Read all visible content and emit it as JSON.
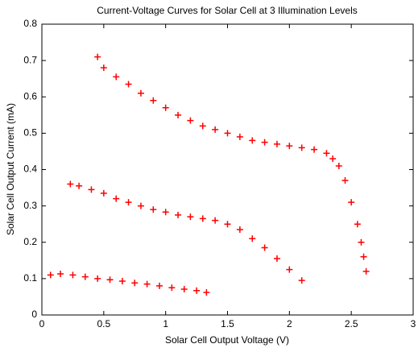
{
  "chart_data": {
    "type": "scatter",
    "title": "Current-Voltage Curves for Solar Cell at 3 Illumination Levels",
    "x_label": "Solar Cell Output Voltage (V)",
    "y_label": "Solar Cell Output Current (mA)",
    "xlim": [
      0,
      3
    ],
    "ylim": [
      0,
      0.8
    ],
    "xticks": [
      0,
      0.5,
      1,
      1.5,
      2,
      2.5,
      3
    ],
    "yticks": [
      0,
      0.1,
      0.2,
      0.3,
      0.4,
      0.5,
      0.6,
      0.7,
      0.8
    ],
    "marker": "+",
    "series": [
      {
        "color": "#ff0000",
        "x": [
          0.45,
          0.5,
          0.6,
          0.7,
          0.8,
          0.9,
          1.0,
          1.1,
          1.2,
          1.3,
          1.4,
          1.5,
          1.6,
          1.7,
          1.8,
          1.9,
          2.0,
          2.1,
          2.2,
          2.3,
          2.35,
          2.4,
          2.45,
          2.5,
          2.55,
          2.58,
          2.6,
          2.62
        ],
        "y": [
          0.71,
          0.68,
          0.655,
          0.635,
          0.61,
          0.59,
          0.57,
          0.55,
          0.535,
          0.52,
          0.51,
          0.5,
          0.49,
          0.48,
          0.475,
          0.47,
          0.465,
          0.46,
          0.455,
          0.445,
          0.43,
          0.41,
          0.37,
          0.31,
          0.25,
          0.2,
          0.16,
          0.12
        ]
      },
      {
        "color": "#ff0000",
        "x": [
          0.23,
          0.3,
          0.4,
          0.5,
          0.6,
          0.7,
          0.8,
          0.9,
          1.0,
          1.1,
          1.2,
          1.3,
          1.4,
          1.5,
          1.6,
          1.7,
          1.8,
          1.9,
          2.0,
          2.1
        ],
        "y": [
          0.36,
          0.355,
          0.345,
          0.335,
          0.32,
          0.31,
          0.3,
          0.29,
          0.283,
          0.275,
          0.27,
          0.265,
          0.26,
          0.25,
          0.235,
          0.21,
          0.185,
          0.155,
          0.125,
          0.095
        ]
      },
      {
        "color": "#ff0000",
        "x": [
          0.07,
          0.15,
          0.25,
          0.35,
          0.45,
          0.55,
          0.65,
          0.75,
          0.85,
          0.95,
          1.05,
          1.15,
          1.25,
          1.33
        ],
        "y": [
          0.11,
          0.113,
          0.11,
          0.105,
          0.1,
          0.097,
          0.093,
          0.088,
          0.085,
          0.08,
          0.075,
          0.071,
          0.067,
          0.062
        ]
      }
    ]
  }
}
